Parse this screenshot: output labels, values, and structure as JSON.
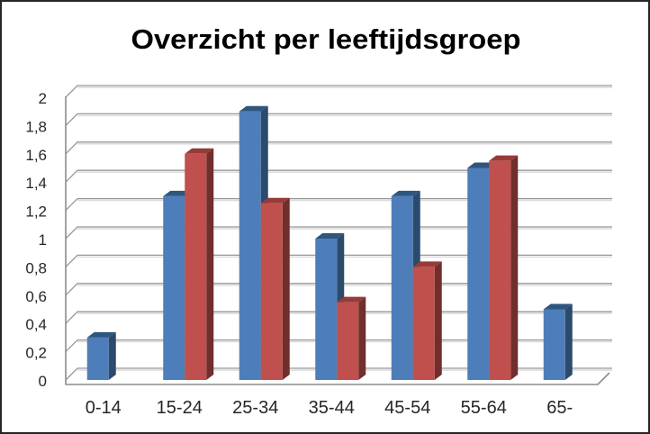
{
  "window": {
    "background": "#ffffff",
    "border_color": "#262626"
  },
  "chart_data": {
    "type": "bar",
    "style": "3d-clustered-column",
    "title": "Overzicht per leeftijdsgroep",
    "title_color": "#000000",
    "categories": [
      "0-14",
      "15-24",
      "25-34",
      "35-44",
      "45-54",
      "55-64",
      "65-"
    ],
    "series": [
      {
        "color": "#4E7EB9",
        "color_top": "#2F567C",
        "color_side": "#2C4A6B",
        "values": [
          0.3,
          1.3,
          1.9,
          1.0,
          1.3,
          1.5,
          0.5
        ]
      },
      {
        "color": "#C0504D",
        "color_top": "#963B38",
        "color_side": "#702E2C",
        "values": [
          0,
          1.6,
          1.25,
          0.55,
          0.8,
          1.55,
          0
        ]
      }
    ],
    "xlabel": "",
    "ylabel": "",
    "ylim": [
      0,
      2
    ],
    "y_tick_step": 0.2,
    "y_tick_labels": [
      "0",
      "0,2",
      "0,4",
      "0,6",
      "0,8",
      "1",
      "1,2",
      "1,4",
      "1,6",
      "1,8",
      "2"
    ],
    "grid": true,
    "legend": false,
    "gridline_color": "#979797",
    "gridline_shadow_color": "#DADADA",
    "axis_color": "#8C8C8C",
    "tick_label_color": "#262626"
  }
}
